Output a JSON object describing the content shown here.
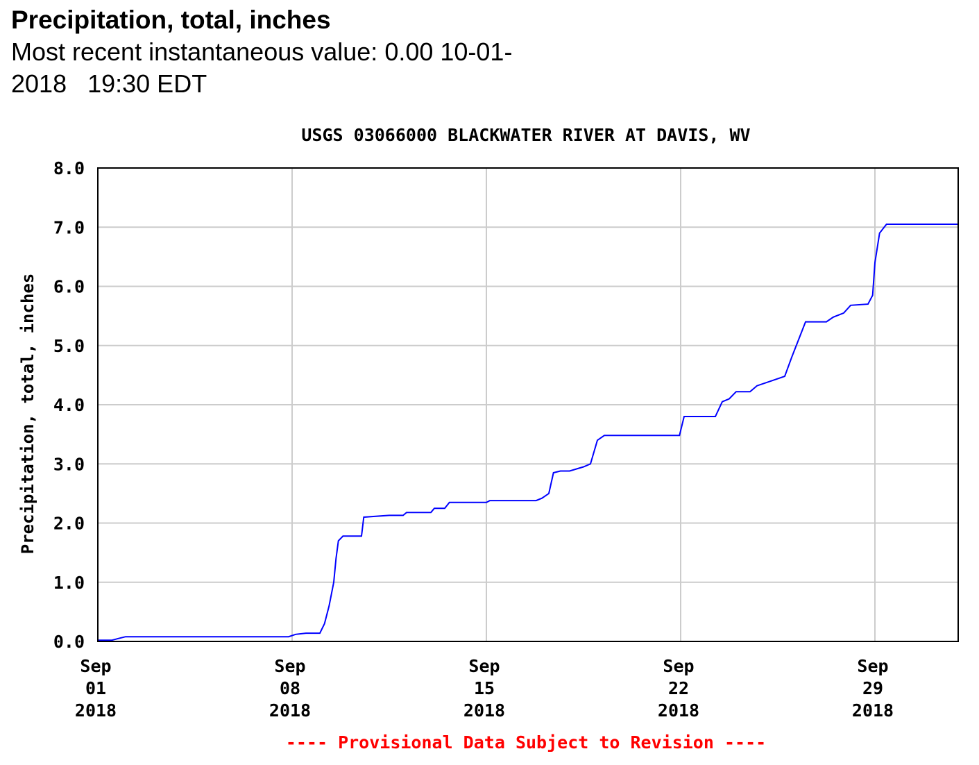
{
  "header": {
    "title": "Precipitation, total, inches",
    "recent_line1": "Most recent instantaneous value: 0.00 10-01-",
    "recent_line2": "2018   19:30 EDT"
  },
  "footer_note": "---- Provisional Data Subject to Revision ----",
  "colors": {
    "series": "#0000ff",
    "grid": "#cccccc",
    "frame": "#000000",
    "note": "#ff0000"
  },
  "chart_data": {
    "type": "line",
    "title": "USGS 03066000 BLACKWATER RIVER AT DAVIS, WV",
    "ylabel": "Precipitation, total, inches",
    "xlabel": "",
    "ylim": [
      0,
      8
    ],
    "xlim": [
      "2018-09-01",
      "2018-10-02"
    ],
    "grid": true,
    "y_ticks": [
      "0.0",
      "1.0",
      "2.0",
      "3.0",
      "4.0",
      "5.0",
      "6.0",
      "7.0",
      "8.0"
    ],
    "x_ticks": [
      {
        "date": "2018-09-01",
        "label": [
          "Sep",
          "01",
          "2018"
        ]
      },
      {
        "date": "2018-09-08",
        "label": [
          "Sep",
          "08",
          "2018"
        ]
      },
      {
        "date": "2018-09-15",
        "label": [
          "Sep",
          "15",
          "2018"
        ]
      },
      {
        "date": "2018-09-22",
        "label": [
          "Sep",
          "22",
          "2018"
        ]
      },
      {
        "date": "2018-09-29",
        "label": [
          "Sep",
          "29",
          "2018"
        ]
      }
    ],
    "series": [
      {
        "values": [
          [
            "2018-09-01 00:00",
            0.02
          ],
          [
            "2018-09-01 12:00",
            0.02
          ],
          [
            "2018-09-01 18:00",
            0.05
          ],
          [
            "2018-09-02 00:00",
            0.08
          ],
          [
            "2018-09-07 21:00",
            0.08
          ],
          [
            "2018-09-08 03:00",
            0.12
          ],
          [
            "2018-09-08 12:00",
            0.14
          ],
          [
            "2018-09-09 00:00",
            0.14
          ],
          [
            "2018-09-09 04:00",
            0.3
          ],
          [
            "2018-09-09 08:00",
            0.6
          ],
          [
            "2018-09-09 12:00",
            1.0
          ],
          [
            "2018-09-09 14:00",
            1.4
          ],
          [
            "2018-09-09 16:00",
            1.7
          ],
          [
            "2018-09-09 20:00",
            1.78
          ],
          [
            "2018-09-10 12:00",
            1.78
          ],
          [
            "2018-09-10 14:00",
            2.1
          ],
          [
            "2018-09-11 12:00",
            2.13
          ],
          [
            "2018-09-12 00:00",
            2.13
          ],
          [
            "2018-09-12 03:00",
            2.18
          ],
          [
            "2018-09-13 00:00",
            2.18
          ],
          [
            "2018-09-13 03:00",
            2.25
          ],
          [
            "2018-09-13 12:00",
            2.25
          ],
          [
            "2018-09-13 16:00",
            2.35
          ],
          [
            "2018-09-15 00:00",
            2.35
          ],
          [
            "2018-09-15 03:00",
            2.38
          ],
          [
            "2018-09-16 19:00",
            2.38
          ],
          [
            "2018-09-17 00:00",
            2.42
          ],
          [
            "2018-09-17 06:00",
            2.5
          ],
          [
            "2018-09-17 10:00",
            2.85
          ],
          [
            "2018-09-17 16:00",
            2.88
          ],
          [
            "2018-09-18 00:00",
            2.88
          ],
          [
            "2018-09-18 12:00",
            2.95
          ],
          [
            "2018-09-18 18:00",
            3.0
          ],
          [
            "2018-09-19 00:00",
            3.4
          ],
          [
            "2018-09-19 06:00",
            3.48
          ],
          [
            "2018-09-21 23:00",
            3.48
          ],
          [
            "2018-09-22 03:00",
            3.8
          ],
          [
            "2018-09-23 06:00",
            3.8
          ],
          [
            "2018-09-23 12:00",
            4.05
          ],
          [
            "2018-09-23 18:00",
            4.1
          ],
          [
            "2018-09-24 00:00",
            4.22
          ],
          [
            "2018-09-24 12:00",
            4.22
          ],
          [
            "2018-09-24 18:00",
            4.32
          ],
          [
            "2018-09-25 06:00",
            4.4
          ],
          [
            "2018-09-25 18:00",
            4.48
          ],
          [
            "2018-09-26 00:00",
            4.8
          ],
          [
            "2018-09-26 06:00",
            5.1
          ],
          [
            "2018-09-26 12:00",
            5.4
          ],
          [
            "2018-09-27 06:00",
            5.4
          ],
          [
            "2018-09-27 12:00",
            5.48
          ],
          [
            "2018-09-27 21:00",
            5.55
          ],
          [
            "2018-09-28 03:00",
            5.68
          ],
          [
            "2018-09-28 18:00",
            5.7
          ],
          [
            "2018-09-28 22:00",
            5.85
          ],
          [
            "2018-09-29 00:00",
            6.4
          ],
          [
            "2018-09-29 04:00",
            6.9
          ],
          [
            "2018-09-29 10:00",
            7.05
          ],
          [
            "2018-10-02 00:00",
            7.05
          ]
        ]
      }
    ]
  }
}
